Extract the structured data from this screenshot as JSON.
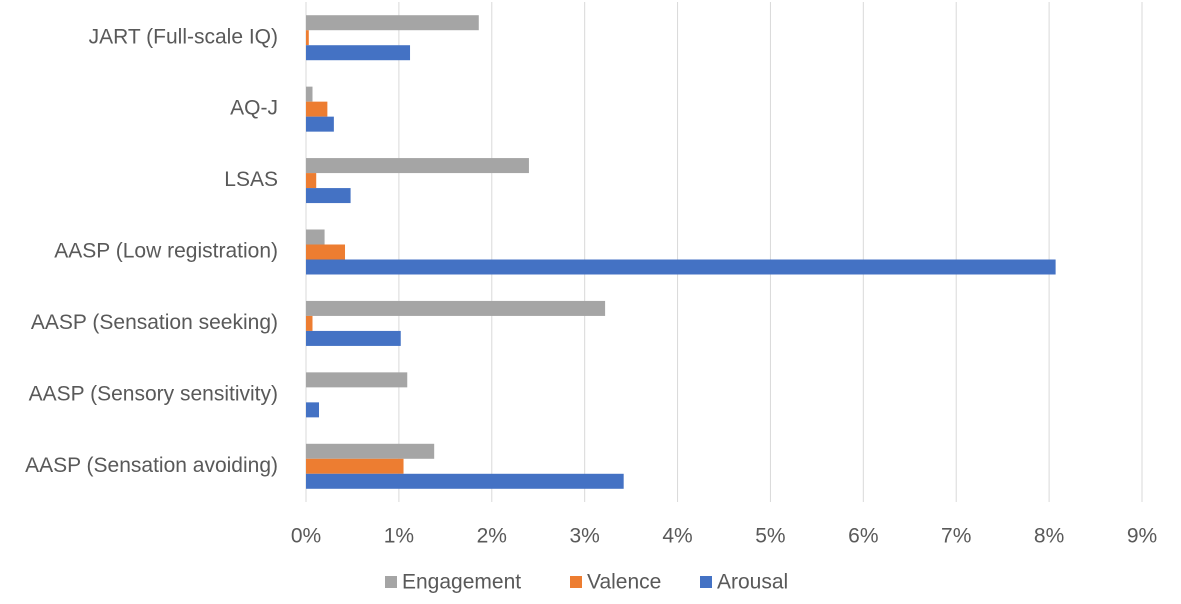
{
  "chart_data": {
    "type": "hbar",
    "categories": [
      "JART (Full-scale IQ)",
      "AQ-J",
      "LSAS",
      "AASP (Low registration)",
      "AASP (Sensation seeking)",
      "AASP (Sensory sensitivity)",
      "AASP (Sensation avoiding)"
    ],
    "series": [
      {
        "name": "Engagement",
        "color": "#a5a5a5",
        "values": [
          1.86,
          0.07,
          2.4,
          0.2,
          3.22,
          1.09,
          1.38
        ]
      },
      {
        "name": "Valence",
        "color": "#ed7d31",
        "values": [
          0.03,
          0.23,
          0.11,
          0.42,
          0.07,
          0,
          1.05
        ]
      },
      {
        "name": "Arousal",
        "color": "#4472c4",
        "values": [
          1.12,
          0.3,
          0.48,
          8.07,
          1.02,
          0.14,
          3.42
        ]
      }
    ],
    "xlim": [
      0,
      9
    ],
    "xticks": [
      {
        "value": 0,
        "label": "0%"
      },
      {
        "value": 1,
        "label": "1%"
      },
      {
        "value": 2,
        "label": "2%"
      },
      {
        "value": 3,
        "label": "3%"
      },
      {
        "value": 4,
        "label": "4%"
      },
      {
        "value": 5,
        "label": "5%"
      },
      {
        "value": 6,
        "label": "6%"
      },
      {
        "value": 7,
        "label": "7%"
      },
      {
        "value": 8,
        "label": "8%"
      },
      {
        "value": 9,
        "label": "9%"
      }
    ],
    "grid": true,
    "legend": "bottom"
  }
}
